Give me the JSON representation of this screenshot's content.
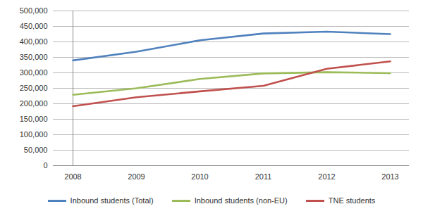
{
  "chart_data": {
    "type": "line",
    "categories": [
      "2008",
      "2009",
      "2010",
      "2011",
      "2012",
      "2013"
    ],
    "series": [
      {
        "name": "Inbound students (Total)",
        "color": "#4f81bd",
        "values": [
          340000,
          368000,
          405000,
          427000,
          433000,
          425000
        ]
      },
      {
        "name": "Inbound students (non-EU)",
        "color": "#9bbb59",
        "values": [
          229000,
          250000,
          280000,
          298000,
          302000,
          299000
        ]
      },
      {
        "name": "TNE students",
        "color": "#c0504d",
        "values": [
          192000,
          221000,
          240000,
          258000,
          313000,
          337000
        ]
      }
    ],
    "ylim": [
      0,
      500000
    ],
    "yticks": [
      0,
      {
        "value": 50000,
        "label": "50,000"
      },
      {
        "value": 100000,
        "label": "100,000"
      },
      {
        "value": 150000,
        "label": "150,000"
      },
      {
        "value": 200000,
        "label": "200,000"
      },
      {
        "value": 250000,
        "label": "250,000"
      },
      {
        "value": 300000,
        "label": "300,000"
      },
      {
        "value": 350000,
        "label": "350,000"
      },
      {
        "value": 400000,
        "label": "400,000"
      },
      {
        "value": 450000,
        "label": "450,000"
      },
      {
        "value": 500000,
        "label": "500,000"
      }
    ],
    "grid": true,
    "legend": "bottom"
  }
}
